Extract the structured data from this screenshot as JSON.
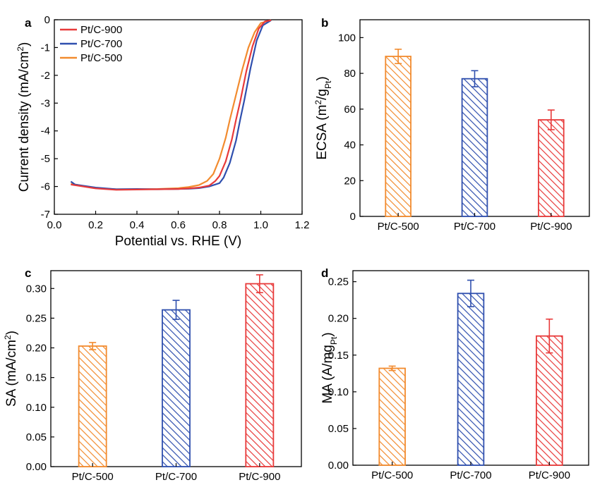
{
  "colors": {
    "Pt/C-500": "#f28b2e",
    "Pt/C-700": "#2f4fae",
    "Pt/C-900": "#e83a3a"
  },
  "chart_data": [
    {
      "id": "a",
      "letter": "a",
      "type": "line",
      "xlabel": "Potential vs. RHE (V)",
      "ylabel_main": "Current density  (mA/cm",
      "ylabel_sup": "2",
      "ylabel_end": ")",
      "xlim": [
        0.0,
        1.2
      ],
      "ylim": [
        -7,
        0
      ],
      "xticks": [
        "0.0",
        "0.2",
        "0.4",
        "0.6",
        "0.8",
        "1.0",
        "1.2"
      ],
      "xtick_values": [
        0.0,
        0.2,
        0.4,
        0.6,
        0.8,
        1.0,
        1.2
      ],
      "yticks": [
        "0",
        "-1",
        "-2",
        "-3",
        "-4",
        "-5",
        "-6",
        "-7"
      ],
      "ytick_values": [
        0,
        -1,
        -2,
        -3,
        -4,
        -5,
        -6,
        -7
      ],
      "legend": [
        "Pt/C-900",
        "Pt/C-700",
        "Pt/C-500"
      ],
      "series": [
        {
          "name": "Pt/C-900",
          "onset": 0.905,
          "x": [
            0.08,
            0.2,
            0.3,
            0.4,
            0.5,
            0.6,
            0.65,
            0.7,
            0.75,
            0.78,
            0.8,
            0.83,
            0.86,
            0.88,
            0.9,
            0.93,
            0.96,
            0.99,
            1.02,
            1.05
          ],
          "y": [
            -5.93,
            -6.07,
            -6.12,
            -6.11,
            -6.1,
            -6.09,
            -6.07,
            -6.04,
            -5.97,
            -5.8,
            -5.62,
            -5.1,
            -4.3,
            -3.6,
            -2.95,
            -1.85,
            -0.95,
            -0.32,
            -0.06,
            -0.02
          ]
        },
        {
          "name": "Pt/C-700",
          "onset": 0.925,
          "x": [
            0.08,
            0.1,
            0.2,
            0.3,
            0.4,
            0.5,
            0.6,
            0.65,
            0.7,
            0.75,
            0.8,
            0.82,
            0.85,
            0.88,
            0.9,
            0.92,
            0.95,
            0.98,
            1.01,
            1.05
          ],
          "y": [
            -5.82,
            -5.93,
            -6.04,
            -6.1,
            -6.09,
            -6.1,
            -6.09,
            -6.08,
            -6.06,
            -6.0,
            -5.88,
            -5.68,
            -5.15,
            -4.35,
            -3.6,
            -2.9,
            -1.75,
            -0.75,
            -0.2,
            -0.02
          ]
        },
        {
          "name": "Pt/C-500",
          "onset": 0.88,
          "x": [
            0.08,
            0.2,
            0.3,
            0.4,
            0.5,
            0.6,
            0.65,
            0.7,
            0.74,
            0.77,
            0.8,
            0.83,
            0.85,
            0.88,
            0.91,
            0.94,
            0.97,
            1.0,
            1.05
          ],
          "y": [
            -5.9,
            -6.06,
            -6.1,
            -6.1,
            -6.09,
            -6.06,
            -6.02,
            -5.95,
            -5.8,
            -5.55,
            -5.0,
            -4.25,
            -3.6,
            -2.7,
            -1.8,
            -1.0,
            -0.45,
            -0.12,
            -0.02
          ]
        }
      ]
    },
    {
      "id": "b",
      "letter": "b",
      "type": "bar",
      "ylabel_main": "ECSA  (m",
      "ylabel_sup": "2",
      "ylabel_mid": "/g",
      "ylabel_sub": "Pt",
      "ylabel_end": ")",
      "categories": [
        "Pt/C-500",
        "Pt/C-700",
        "Pt/C-900"
      ],
      "values": [
        89.5,
        77.0,
        54.0
      ],
      "errors": [
        4.0,
        4.5,
        5.5
      ],
      "ylim": [
        0,
        110
      ],
      "yticks": [
        "0",
        "20",
        "40",
        "60",
        "80",
        "100"
      ],
      "ytick_values": [
        0,
        20,
        40,
        60,
        80,
        100
      ]
    },
    {
      "id": "c",
      "letter": "c",
      "type": "bar",
      "ylabel_main": "SA  (mA/cm",
      "ylabel_sup": "2",
      "ylabel_end": ")",
      "categories": [
        "Pt/C-500",
        "Pt/C-700",
        "Pt/C-900"
      ],
      "values": [
        0.203,
        0.264,
        0.308
      ],
      "errors": [
        0.006,
        0.016,
        0.015
      ],
      "ylim": [
        0,
        0.33
      ],
      "yticks": [
        "0.00",
        "0.05",
        "0.10",
        "0.15",
        "0.20",
        "0.25",
        "0.30"
      ],
      "ytick_values": [
        0.0,
        0.05,
        0.1,
        0.15,
        0.2,
        0.25,
        0.3
      ]
    },
    {
      "id": "d",
      "letter": "d",
      "type": "bar",
      "ylabel_main": "MA  (A/mg",
      "ylabel_sub": "Pt",
      "ylabel_end": ")",
      "categories": [
        "Pt/C-500",
        "Pt/C-700",
        "Pt/C-900"
      ],
      "values": [
        0.132,
        0.234,
        0.176
      ],
      "errors": [
        0.003,
        0.018,
        0.023
      ],
      "ylim": [
        0,
        0.265
      ],
      "yticks": [
        "0.00",
        "0.05",
        "0.10",
        "0.15",
        "0.20",
        "0.25"
      ],
      "ytick_values": [
        0.0,
        0.05,
        0.1,
        0.15,
        0.2,
        0.25
      ]
    }
  ]
}
